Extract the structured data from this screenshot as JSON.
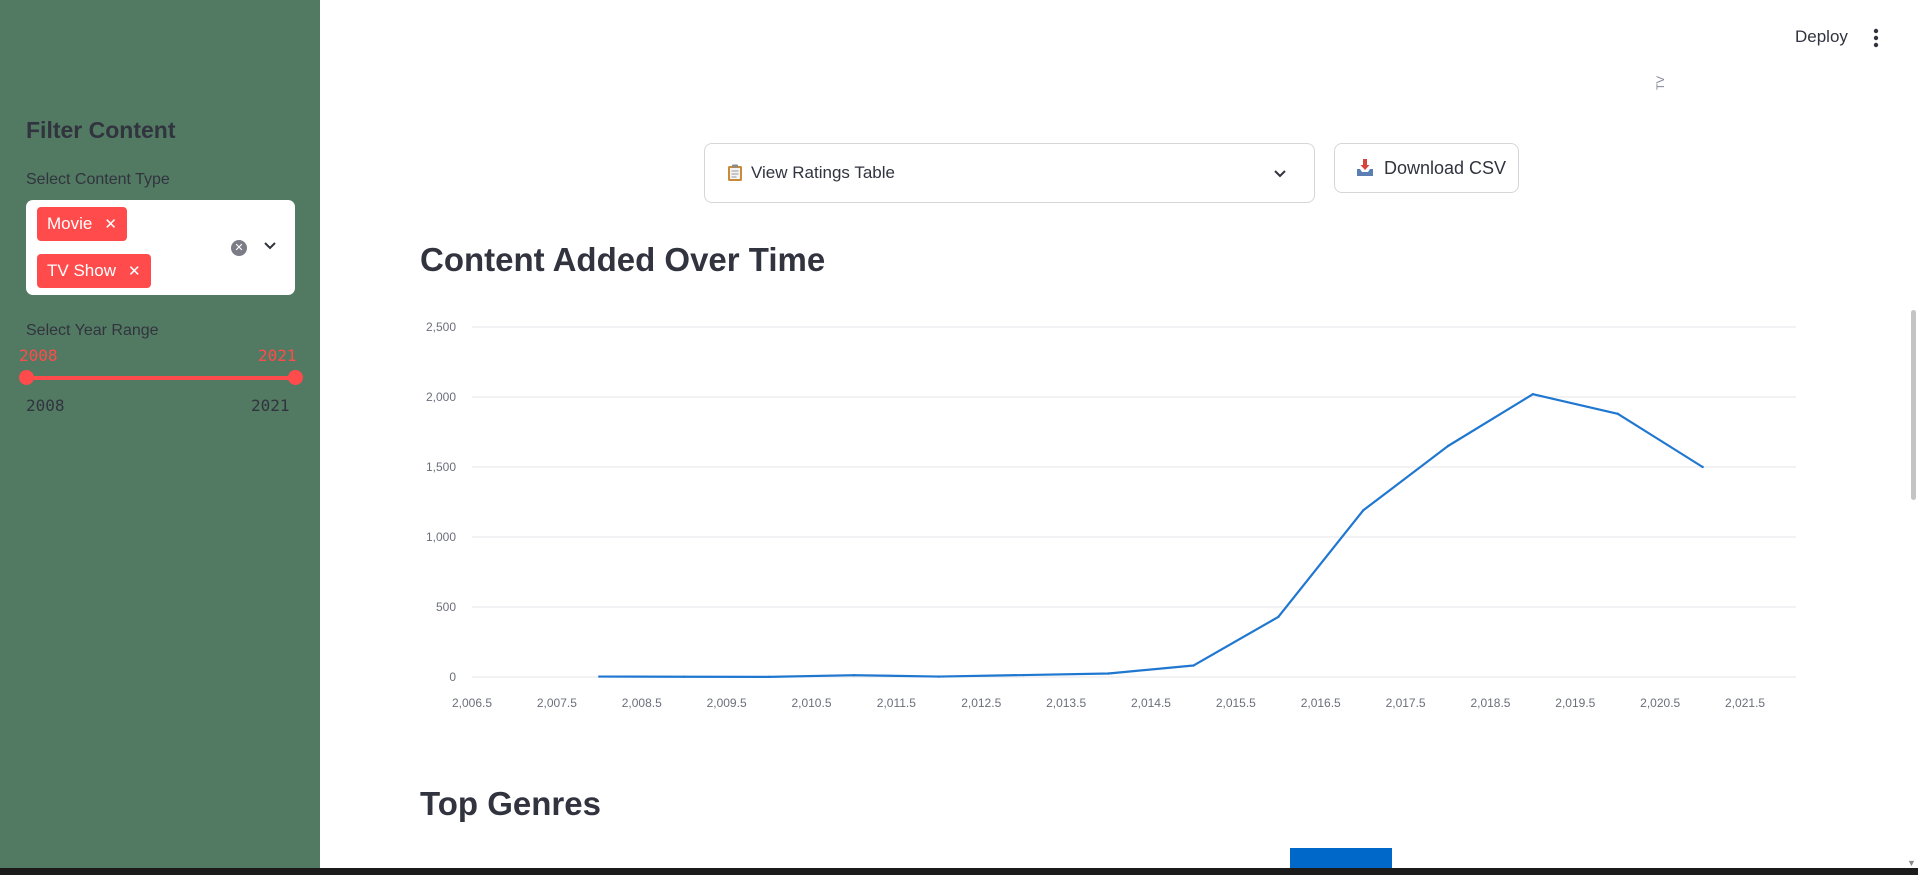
{
  "sidebar": {
    "title": "Filter Content",
    "content_type_label": "Select Content Type",
    "content_types": [
      "Movie",
      "TV Show"
    ],
    "year_range_label": "Select Year Range",
    "year_selected_min": "2008",
    "year_selected_max": "2021",
    "year_bound_min": "2008",
    "year_bound_max": "2021",
    "accent_color": "#ff4b4b",
    "background_color": "#527a62"
  },
  "header": {
    "deploy_label": "Deploy",
    "menu_icon": "vertical-ellipsis-icon",
    "stray_label": "TV"
  },
  "controls": {
    "expander_label": "View Ratings Table",
    "expander_icon": "clipboard-icon",
    "download_label": "Download CSV",
    "download_icon": "inbox-tray-icon"
  },
  "sections": {
    "content_added_title": "Content Added Over Time",
    "top_genres_title": "Top Genres"
  },
  "chart_data": {
    "type": "line",
    "title": "",
    "xlabel": "",
    "ylabel": "",
    "line_color": "#1f77d0",
    "grid": true,
    "x": [
      2008,
      2009,
      2010,
      2011,
      2012,
      2013,
      2014,
      2015,
      2016,
      2017,
      2018,
      2019,
      2020,
      2021
    ],
    "values": [
      3,
      2,
      1,
      13,
      3,
      14,
      25,
      82,
      429,
      1190,
      1650,
      2020,
      1880,
      1500
    ],
    "xlim": [
      2006.5,
      2022.1
    ],
    "ylim": [
      0,
      2500
    ],
    "x_ticks": [
      "2,006.5",
      "2,007.5",
      "2,008.5",
      "2,009.5",
      "2,010.5",
      "2,011.5",
      "2,012.5",
      "2,013.5",
      "2,014.5",
      "2,015.5",
      "2,016.5",
      "2,017.5",
      "2,018.5",
      "2,019.5",
      "2,020.5",
      "2,021.5"
    ],
    "y_ticks": [
      "0",
      "500",
      "1,000",
      "1,500",
      "2,000",
      "2,500"
    ]
  }
}
